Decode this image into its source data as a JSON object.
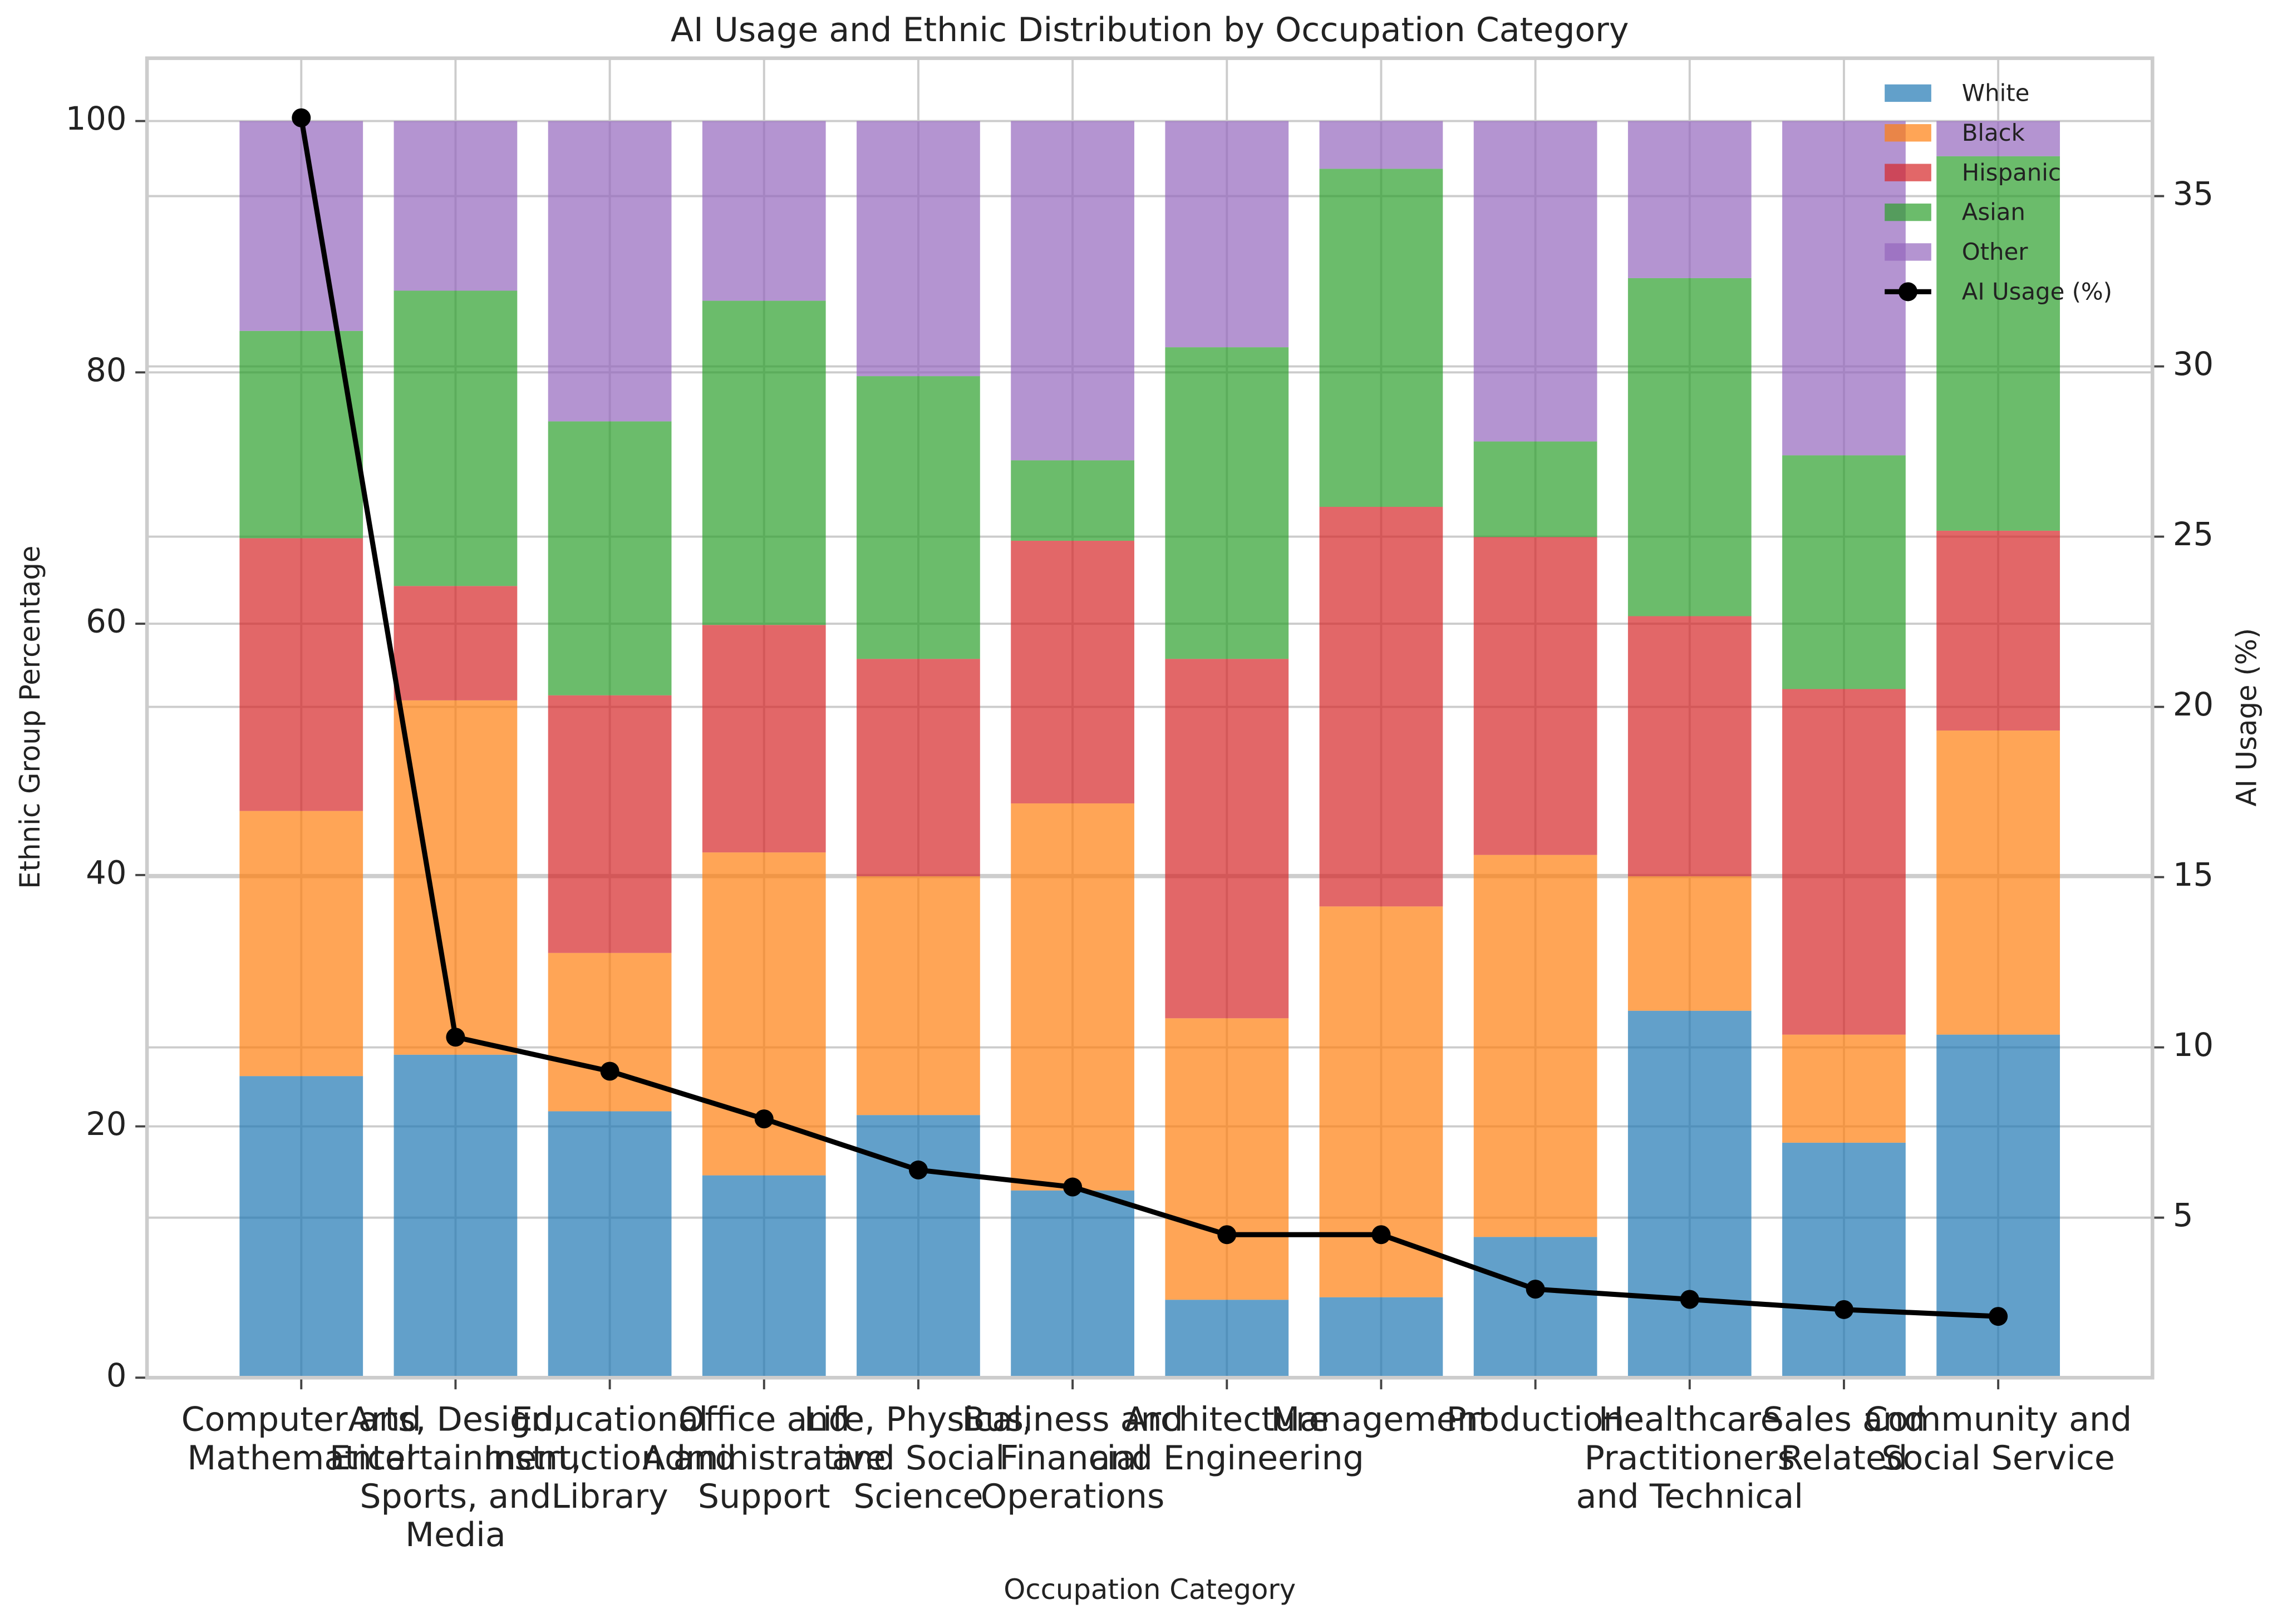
{
  "chart_data": {
    "type": "bar",
    "title": "AI Usage and Ethnic Distribution by Occupation Category",
    "x_label": "Occupation Category",
    "y_label": "Ethnic Group Percentage",
    "y2_label": "AI Usage (%)",
    "categories": [
      "Computer and\nMathematical",
      "Arts, Design,\nEntertainment,\nSports, and\nMedia",
      "Educational\nInstruction and\nLibrary",
      "Office and\nAdministrative\nSupport",
      "Life, Physical,\nand Social\nScience",
      "Business and\nFinancial\nOperations",
      "Architecture\nand Engineering",
      "Management",
      "Production",
      "Healthcare\nPractitioners\nand Technical",
      "Sales and\nRelated",
      "Community and\nSocial Service"
    ],
    "series": [
      {
        "name": "White",
        "color": "#1f77b4",
        "values": [
          24.0,
          25.7,
          21.2,
          16.1,
          20.9,
          14.9,
          6.2,
          6.4,
          11.2,
          29.2,
          18.7,
          27.3
        ]
      },
      {
        "name": "Black",
        "color": "#ff7f0e",
        "values": [
          21.1,
          28.2,
          12.6,
          25.7,
          19.0,
          30.8,
          22.4,
          31.1,
          30.4,
          10.7,
          8.6,
          24.2
        ]
      },
      {
        "name": "Hispanic",
        "color": "#d62728",
        "values": [
          21.7,
          9.1,
          20.5,
          18.1,
          17.3,
          20.9,
          28.6,
          31.8,
          25.3,
          20.7,
          27.5,
          15.9
        ]
      },
      {
        "name": "Asian",
        "color": "#2ca02c",
        "values": [
          16.5,
          23.5,
          21.8,
          25.8,
          22.5,
          6.4,
          24.8,
          26.9,
          7.6,
          26.9,
          18.6,
          29.8
        ]
      },
      {
        "name": "Other",
        "color": "#9467bd",
        "values": [
          16.7,
          13.5,
          23.9,
          14.3,
          20.3,
          27.0,
          18.0,
          3.8,
          25.5,
          12.5,
          26.6,
          2.8
        ]
      },
      {
        "name": "AI Usage (%)",
        "color": "#000000",
        "type": "line",
        "axis": "y2",
        "values": [
          37.3,
          10.3,
          9.3,
          7.9,
          6.4,
          5.9,
          4.5,
          4.5,
          2.9,
          2.6,
          2.3,
          2.1
        ]
      }
    ],
    "ylim": [
      0,
      105
    ],
    "yticks": [
      0,
      20,
      40,
      60,
      80,
      100
    ],
    "y2lim": [
      0.3,
      39.05
    ],
    "y2ticks": [
      5,
      10,
      15,
      20,
      25,
      30,
      35
    ],
    "grid": true,
    "legend": "upper right"
  }
}
